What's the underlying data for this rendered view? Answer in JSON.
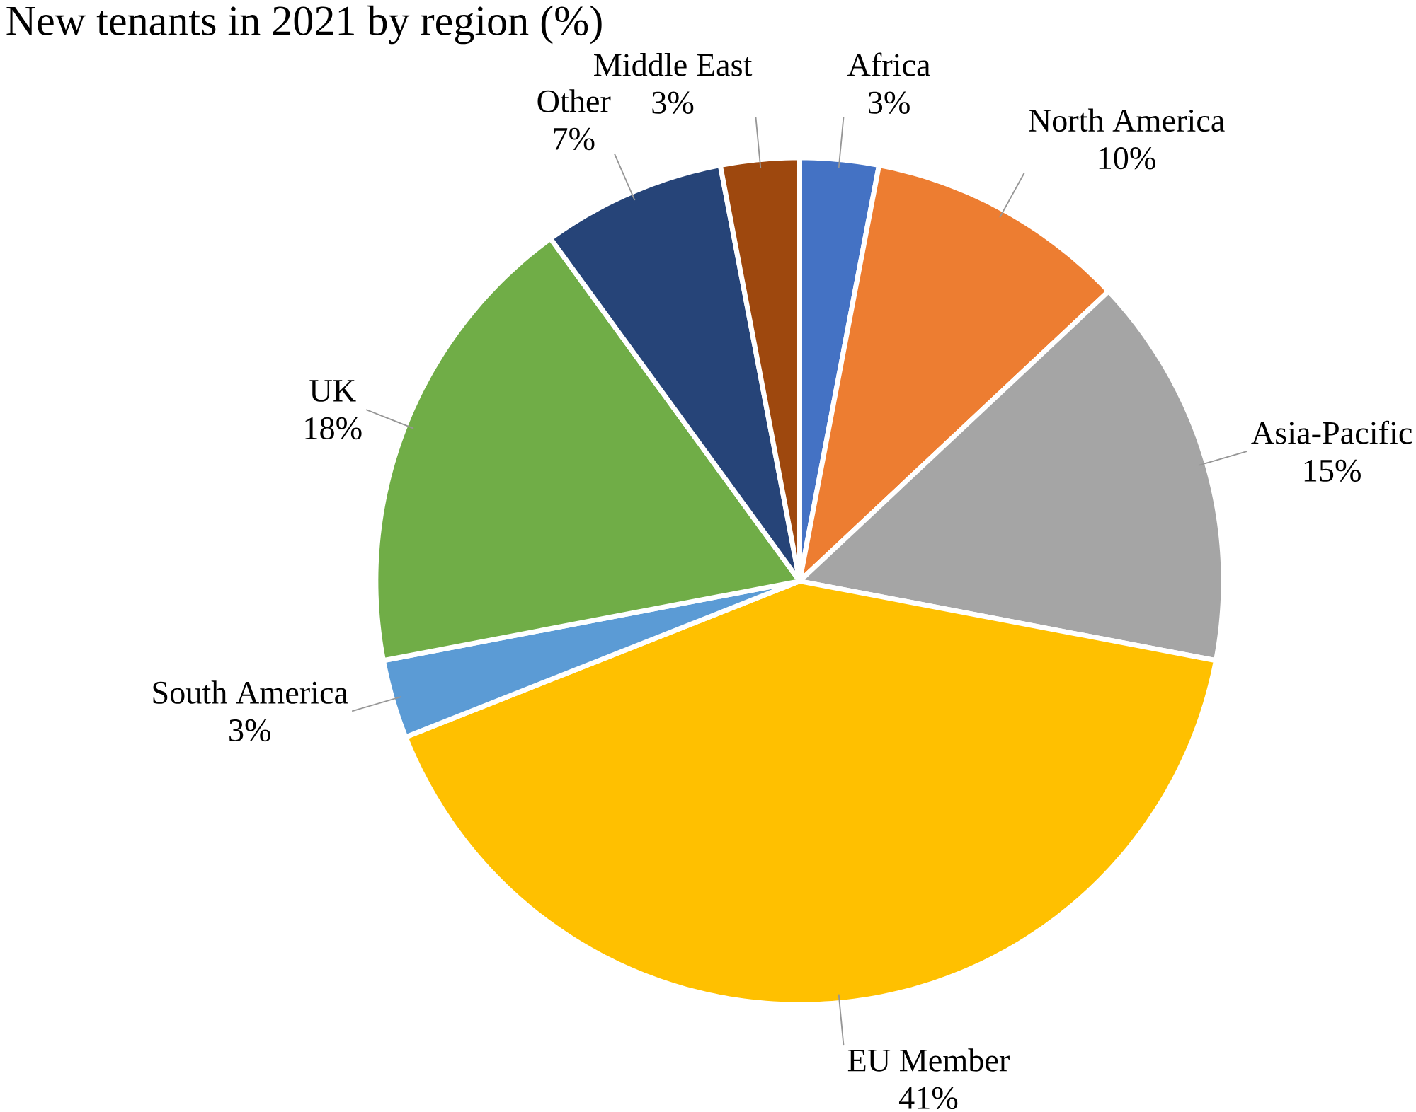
{
  "chart_data": {
    "type": "pie",
    "title": "New tenants in 2021 by region (%)",
    "categories": [
      "Africa",
      "North America",
      "Asia-Pacific",
      "EU Member",
      "South America",
      "UK",
      "Other",
      "Middle East"
    ],
    "values": [
      3,
      10,
      15,
      41,
      3,
      18,
      7,
      3
    ],
    "value_labels": [
      "3%",
      "10%",
      "15%",
      "41%",
      "3%",
      "18%",
      "7%",
      "3%"
    ],
    "colors": [
      "#4472c4",
      "#ed7d31",
      "#a5a5a5",
      "#ffc000",
      "#5b9bd5",
      "#70ad47",
      "#264478",
      "#9e480e"
    ]
  }
}
